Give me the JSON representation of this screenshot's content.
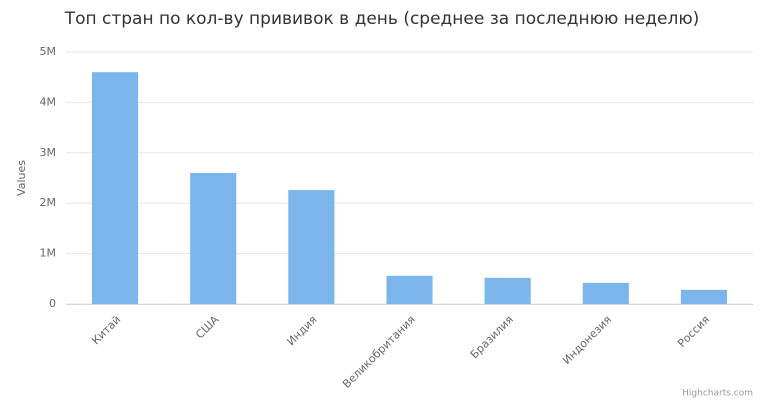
{
  "chart_data": {
    "type": "bar",
    "title": "Топ стран по кол-ву прививок в день (среднее за последнюю неделю)",
    "y_axis_label": "Values",
    "credit": "Highcharts.com",
    "categories": [
      "Китай",
      "США",
      "Индия",
      "Великобритания",
      "Бразилия",
      "Индонезия",
      "Россия"
    ],
    "values": [
      4600000,
      2600000,
      2260000,
      560000,
      520000,
      420000,
      280000
    ],
    "color": "#7cb5ec",
    "ylim": [
      0,
      5000000
    ],
    "yticks": [
      0,
      {
        "value": 1000000,
        "label": "1M"
      },
      {
        "value": 2000000,
        "label": "2M"
      },
      {
        "value": 3000000,
        "label": "3M"
      },
      {
        "value": 4000000,
        "label": "4M"
      },
      {
        "value": 5000000,
        "label": "5M"
      }
    ],
    "grid": true
  }
}
